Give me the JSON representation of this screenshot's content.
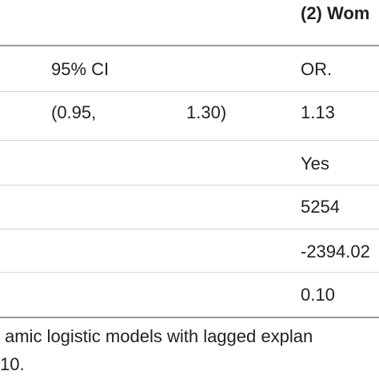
{
  "table": {
    "group_header": "(2) Wom",
    "columns": {
      "ci": "95% CI",
      "or": "OR."
    },
    "rows": [
      {
        "ci_low": "(0.95,",
        "ci_high": "1.30)",
        "or": "1.13"
      },
      {
        "or": "Yes"
      },
      {
        "or": "5254"
      },
      {
        "or": "-2394.02"
      },
      {
        "or": "0.10"
      }
    ]
  },
  "footnote": {
    "line1": "amic logistic models with lagged explan",
    "line2": "10."
  }
}
